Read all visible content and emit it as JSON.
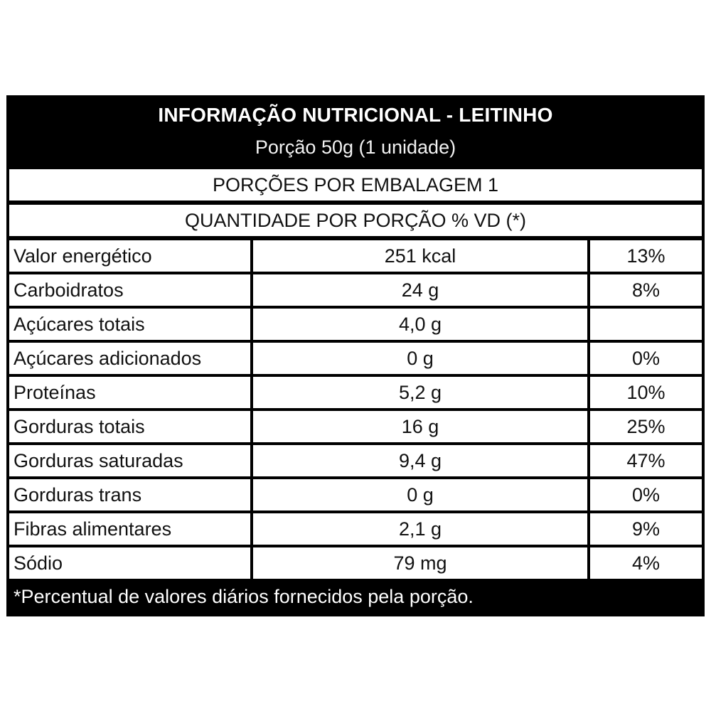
{
  "header": {
    "title": "INFORMAÇÃO NUTRICIONAL - LEITINHO",
    "serving": "Porção 50g (1 unidade)"
  },
  "servings_per_package": "PORÇÕES POR EMBALAGEM 1",
  "quantity_header": "QUANTIDADE POR PORÇÃO % VD (*)",
  "rows": [
    {
      "name": "Valor energético",
      "amount": "251 kcal",
      "dv": "13%"
    },
    {
      "name": "Carboidratos",
      "amount": "24 g",
      "dv": "8%"
    },
    {
      "name": "Açúcares totais",
      "amount": "4,0 g",
      "dv": ""
    },
    {
      "name": "Açúcares adicionados",
      "amount": "0 g",
      "dv": "0%"
    },
    {
      "name": "Proteínas",
      "amount": "5,2 g",
      "dv": "10%"
    },
    {
      "name": "Gorduras totais",
      "amount": "16 g",
      "dv": "25%"
    },
    {
      "name": "Gorduras saturadas",
      "amount": "9,4 g",
      "dv": "47%"
    },
    {
      "name": "Gorduras trans",
      "amount": "0 g",
      "dv": "0%"
    },
    {
      "name": "Fibras alimentares",
      "amount": "2,1 g",
      "dv": "9%"
    },
    {
      "name": "Sódio",
      "amount": "79 mg",
      "dv": "4%"
    }
  ],
  "footnote": "*Percentual de valores diários fornecidos pela porção."
}
